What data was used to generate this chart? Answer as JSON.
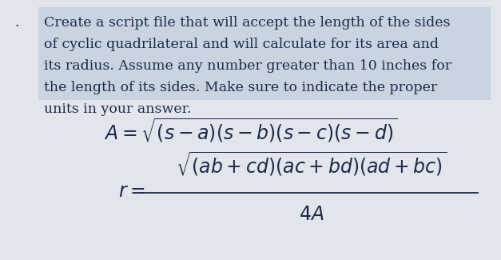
{
  "fig_bg_color": "#e2e6ec",
  "text_block_bg": "#c8d4e0",
  "paragraph_lines": [
    "Create a script file that will accept the length of the sides",
    "of cyclic quadrilateral and will calculate for its area and",
    "its radius. Assume any number greater than 10 inches for",
    "the length of its sides. Make sure to indicate the proper",
    "units in your answer."
  ],
  "highlighted_lines": 4,
  "bullet": ".",
  "font_color": "#1c2a4a",
  "text_fontsize": 12.5,
  "formula_fontsize": 17,
  "fig_width": 6.27,
  "fig_height": 3.25,
  "dpi": 100
}
